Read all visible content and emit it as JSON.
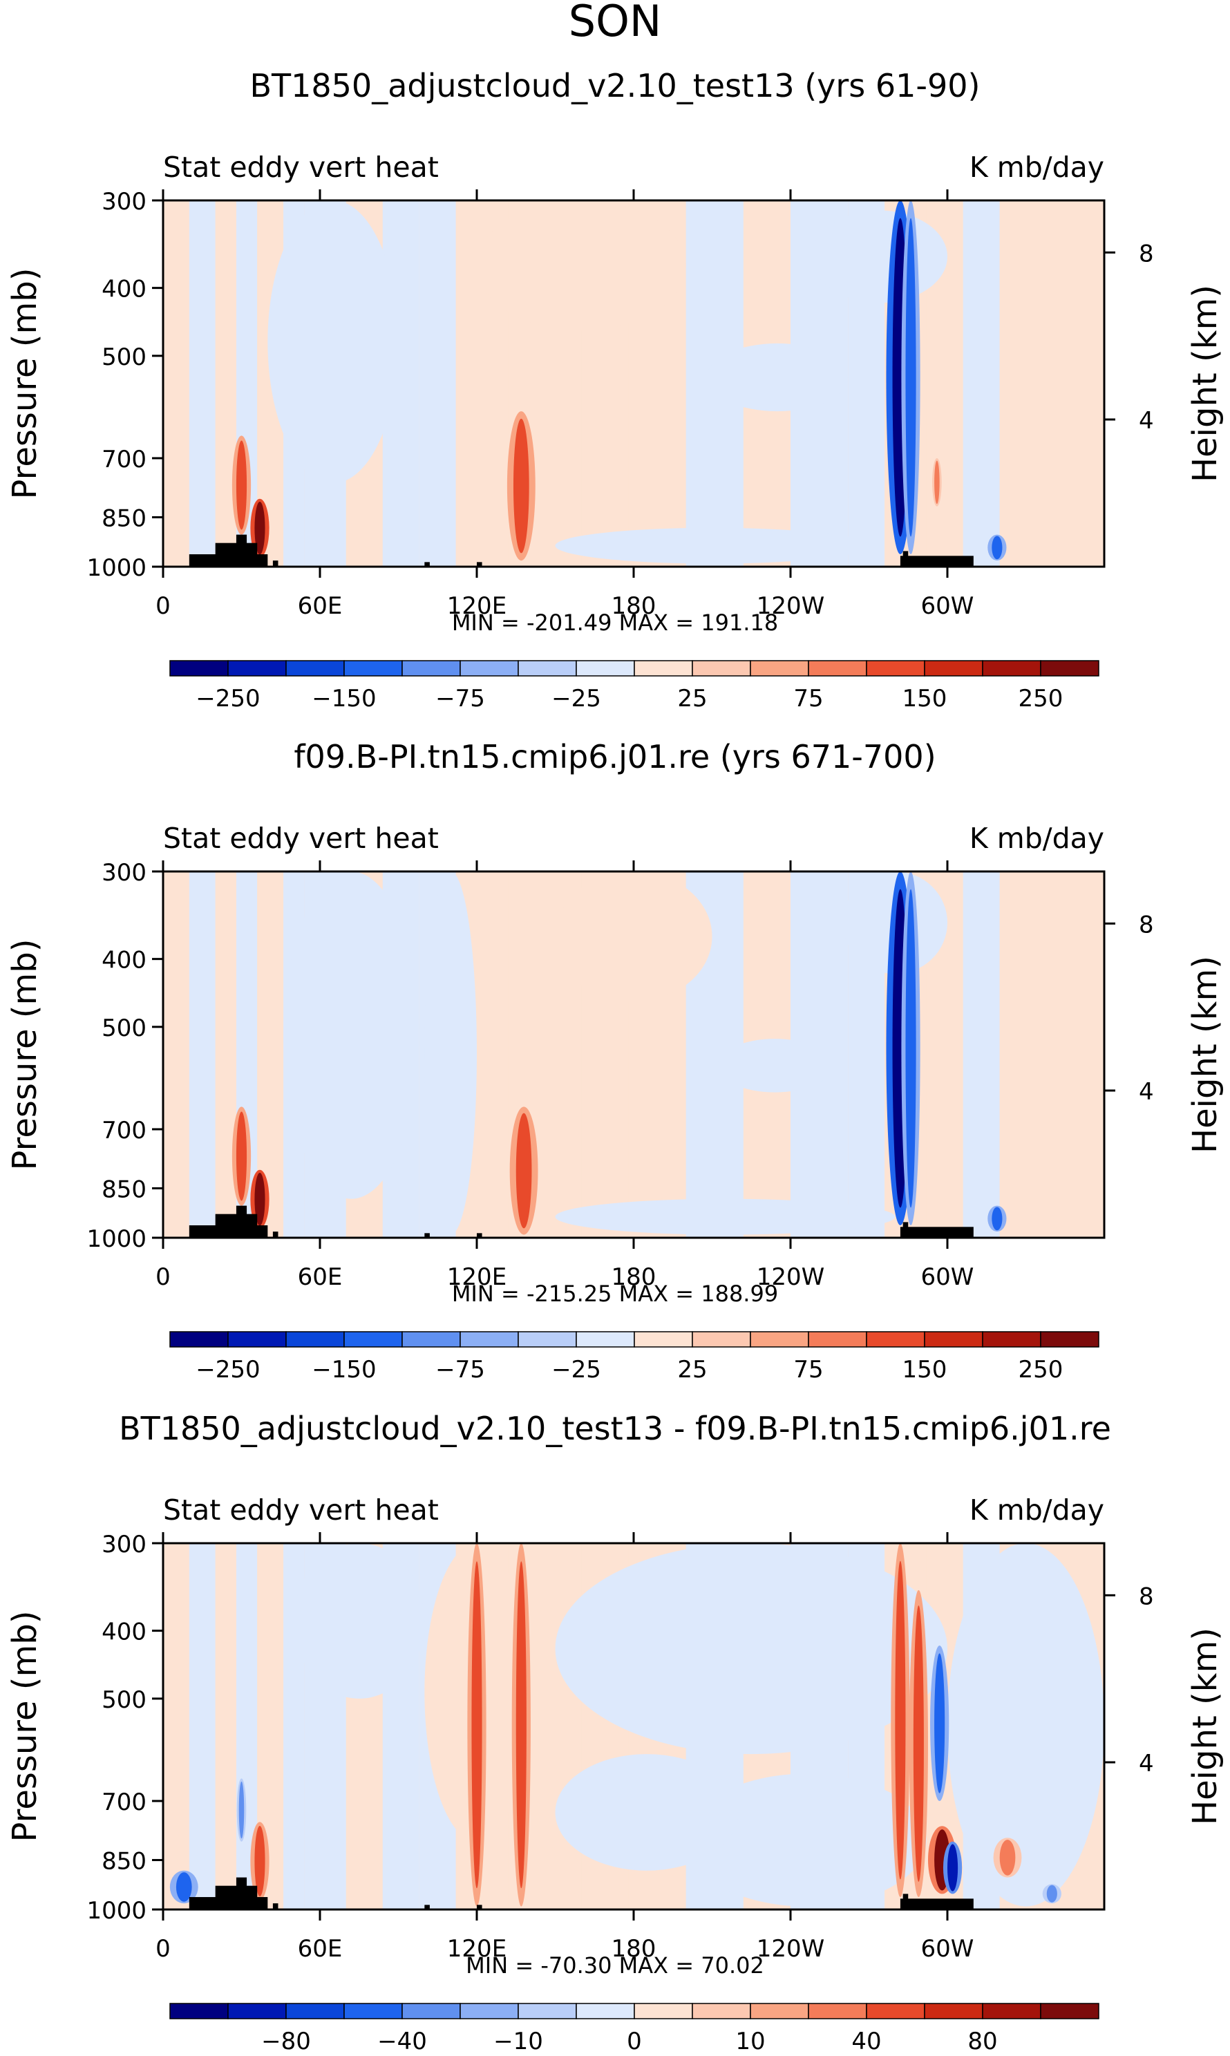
{
  "suptitle": "SON",
  "chart_data": [
    {
      "type": "heatmap",
      "title": "BT1850_adjustcloud_v2.10_test13 (yrs 61-90)",
      "left_label": "Stat eddy vert heat",
      "right_label": "K mb/day",
      "ylabel": "Pressure (mb)",
      "ylabel_right": "Height (km)",
      "xticks": [
        "0",
        "60E",
        "120E",
        "180",
        "120W",
        "60W"
      ],
      "xtick_lon": [
        0,
        60,
        120,
        180,
        240,
        300
      ],
      "xlim": [
        0,
        360
      ],
      "yticks": [
        "300",
        "400",
        "500",
        "700",
        "850",
        "1000"
      ],
      "ytick_p": [
        300,
        400,
        500,
        700,
        850,
        1000
      ],
      "ylim": [
        1000,
        300
      ],
      "height_ticks": [
        "8",
        "4"
      ],
      "height_km": [
        8,
        4
      ],
      "stats": "MIN = -201.49   MAX = 191.18",
      "colorbar": {
        "labels": [
          "-250",
          "-150",
          "-75",
          "-25",
          "25",
          "75",
          "150",
          "250"
        ],
        "colors": [
          "#000080",
          "#0019b4",
          "#0a46d9",
          "#1e64ee",
          "#6090f0",
          "#8caff5",
          "#b9cef8",
          "#dde9fc",
          "#fde3d3",
          "#fcc8b1",
          "#f9a583",
          "#f47c59",
          "#e84a2b",
          "#cc2a13",
          "#a4140b",
          "#7c0b0b"
        ]
      },
      "features": [
        {
          "lon": 282,
          "plo": 300,
          "phi": 960,
          "w": 3,
          "v": -1.0
        },
        {
          "lon": 286,
          "plo": 300,
          "phi": 960,
          "w": 2,
          "v": -0.55
        },
        {
          "lon": 137,
          "plo": 600,
          "phi": 980,
          "w": 3,
          "v": 0.6
        },
        {
          "lon": 30,
          "plo": 650,
          "phi": 900,
          "w": 2,
          "v": 0.6
        },
        {
          "lon": 37,
          "plo": 800,
          "phi": 970,
          "w": 2,
          "v": 1.0
        },
        {
          "lon": 319,
          "plo": 900,
          "phi": 980,
          "w": 2,
          "v": -0.6
        },
        {
          "lon": 296,
          "plo": 700,
          "phi": 820,
          "w": 1,
          "v": 0.45
        }
      ]
    },
    {
      "type": "heatmap",
      "title": "f09.B-PI.tn15.cmip6.j01.re (yrs 671-700)",
      "left_label": "Stat eddy vert heat",
      "right_label": "K mb/day",
      "ylabel": "Pressure (mb)",
      "ylabel_right": "Height (km)",
      "xticks": [
        "0",
        "60E",
        "120E",
        "180",
        "120W",
        "60W"
      ],
      "xtick_lon": [
        0,
        60,
        120,
        180,
        240,
        300
      ],
      "xlim": [
        0,
        360
      ],
      "yticks": [
        "300",
        "400",
        "500",
        "700",
        "850",
        "1000"
      ],
      "ytick_p": [
        300,
        400,
        500,
        700,
        850,
        1000
      ],
      "ylim": [
        1000,
        300
      ],
      "height_ticks": [
        "8",
        "4"
      ],
      "height_km": [
        8,
        4
      ],
      "stats": "MIN = -215.25   MAX = 188.99",
      "colorbar": {
        "labels": [
          "-250",
          "-150",
          "-75",
          "-25",
          "25",
          "75",
          "150",
          "250"
        ],
        "colors": [
          "#000080",
          "#0019b4",
          "#0a46d9",
          "#1e64ee",
          "#6090f0",
          "#8caff5",
          "#b9cef8",
          "#dde9fc",
          "#fde3d3",
          "#fcc8b1",
          "#f9a583",
          "#f47c59",
          "#e84a2b",
          "#cc2a13",
          "#a4140b",
          "#7c0b0b"
        ]
      },
      "features": [
        {
          "lon": 282,
          "plo": 300,
          "phi": 960,
          "w": 3,
          "v": -1.0
        },
        {
          "lon": 286,
          "plo": 300,
          "phi": 960,
          "w": 2,
          "v": -0.55
        },
        {
          "lon": 138,
          "plo": 650,
          "phi": 990,
          "w": 3,
          "v": 0.55
        },
        {
          "lon": 30,
          "plo": 650,
          "phi": 900,
          "w": 2,
          "v": 0.6
        },
        {
          "lon": 37,
          "plo": 800,
          "phi": 970,
          "w": 2,
          "v": 1.0
        },
        {
          "lon": 319,
          "plo": 900,
          "phi": 980,
          "w": 2,
          "v": -0.6
        }
      ]
    },
    {
      "type": "heatmap",
      "title": "BT1850_adjustcloud_v2.10_test13 - f09.B-PI.tn15.cmip6.j01.re",
      "left_label": "Stat eddy vert heat",
      "right_label": "K mb/day",
      "ylabel": "Pressure (mb)",
      "ylabel_right": "Height (km)",
      "xticks": [
        "0",
        "60E",
        "120E",
        "180",
        "120W",
        "60W"
      ],
      "xtick_lon": [
        0,
        60,
        120,
        180,
        240,
        300
      ],
      "xlim": [
        0,
        360
      ],
      "yticks": [
        "300",
        "400",
        "500",
        "700",
        "850",
        "1000"
      ],
      "ytick_p": [
        300,
        400,
        500,
        700,
        850,
        1000
      ],
      "ylim": [
        1000,
        300
      ],
      "height_ticks": [
        "8",
        "4"
      ],
      "height_km": [
        8,
        4
      ],
      "stats": "MIN = -70.30   MAX =  70.02",
      "colorbar": {
        "labels": [
          "-80",
          "-40",
          "-10",
          "0",
          "10",
          "40",
          "80"
        ],
        "colors": [
          "#000080",
          "#0019b4",
          "#0a46d9",
          "#1e64ee",
          "#6090f0",
          "#8caff5",
          "#b9cef8",
          "#dde9fc",
          "#fde3d3",
          "#fcc8b1",
          "#f9a583",
          "#f47c59",
          "#e84a2b",
          "#cc2a13",
          "#a4140b",
          "#7c0b0b"
        ]
      },
      "features": [
        {
          "lon": 120,
          "plo": 300,
          "phi": 990,
          "w": 2,
          "v": 0.55
        },
        {
          "lon": 137,
          "plo": 300,
          "phi": 990,
          "w": 2,
          "v": 0.55
        },
        {
          "lon": 282,
          "plo": 300,
          "phi": 960,
          "w": 2,
          "v": 0.6
        },
        {
          "lon": 289,
          "plo": 350,
          "phi": 960,
          "w": 2,
          "v": 0.55
        },
        {
          "lon": 297,
          "plo": 420,
          "phi": 700,
          "w": 2,
          "v": -0.6
        },
        {
          "lon": 298,
          "plo": 760,
          "phi": 950,
          "w": 3,
          "v": 0.9
        },
        {
          "lon": 302,
          "plo": 800,
          "phi": 950,
          "w": 2,
          "v": -0.85
        },
        {
          "lon": 323,
          "plo": 790,
          "phi": 900,
          "w": 3,
          "v": 0.45
        },
        {
          "lon": 8,
          "plo": 880,
          "phi": 980,
          "w": 3,
          "v": -0.55
        },
        {
          "lon": 37,
          "plo": 750,
          "phi": 970,
          "w": 2,
          "v": 0.6
        },
        {
          "lon": 30,
          "plo": 650,
          "phi": 800,
          "w": 1,
          "v": -0.4
        },
        {
          "lon": 340,
          "plo": 920,
          "phi": 980,
          "w": 2,
          "v": -0.4
        }
      ]
    }
  ]
}
